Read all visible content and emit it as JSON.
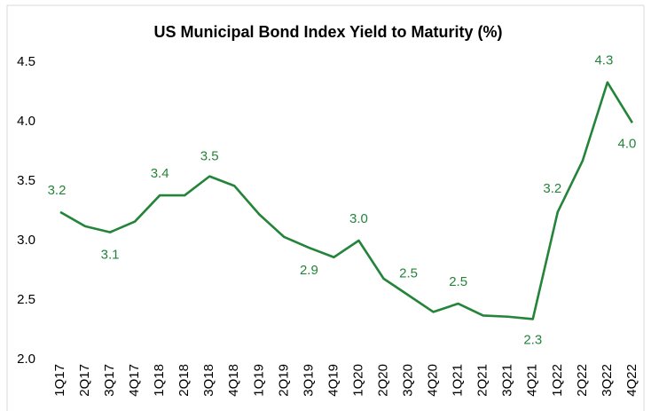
{
  "chart_data": {
    "type": "line",
    "title": "US Municipal Bond Index Yield to Maturity (%)",
    "categories": [
      "1Q17",
      "2Q17",
      "3Q17",
      "4Q17",
      "1Q18",
      "2Q18",
      "3Q18",
      "4Q18",
      "1Q19",
      "2Q19",
      "3Q19",
      "4Q19",
      "1Q20",
      "2Q20",
      "3Q20",
      "4Q20",
      "1Q21",
      "2Q21",
      "3Q21",
      "4Q21",
      "1Q22",
      "2Q22",
      "3Q22",
      "4Q22"
    ],
    "values": [
      3.24,
      3.12,
      3.07,
      3.16,
      3.38,
      3.38,
      3.54,
      3.46,
      3.22,
      3.03,
      2.94,
      2.86,
      3.0,
      2.68,
      2.54,
      2.4,
      2.47,
      2.37,
      2.36,
      2.34,
      3.24,
      3.67,
      4.33,
      3.99
    ],
    "value_labels": [
      "3.2",
      null,
      "3.1",
      null,
      "3.4",
      null,
      "3.5",
      null,
      null,
      null,
      "2.9",
      null,
      "3.0",
      null,
      "2.5",
      null,
      "2.5",
      null,
      null,
      "2.3",
      "3.2",
      null,
      "4.3",
      "4.0"
    ],
    "color": "#23843a",
    "ylim": [
      2,
      4.5
    ],
    "yticks": [
      {
        "value": 2,
        "label": "2.0"
      },
      2.5,
      {
        "value": 3,
        "label": "3.0"
      },
      3.5,
      {
        "value": 4,
        "label": "4.0"
      },
      4.5
    ],
    "grid": false
  }
}
